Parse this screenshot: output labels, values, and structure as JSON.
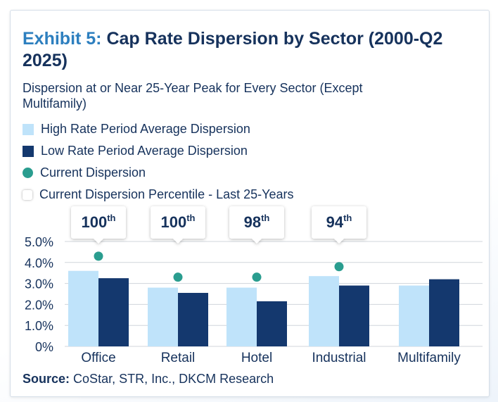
{
  "title": {
    "exhibit": "Exhibit 5:",
    "text": "Cap Rate Dispersion by Sector (2000-Q2 2025)"
  },
  "subtitle": "Dispersion at or Near 25-Year Peak for Every Sector (Except Multifamily)",
  "legend": [
    {
      "label": "High Rate Period Average Dispersion",
      "kind": "light"
    },
    {
      "label": "Low Rate Period Average Dispersion",
      "kind": "dark"
    },
    {
      "label": "Current Dispersion",
      "kind": "dot"
    },
    {
      "label": "Current Dispersion Percentile - Last 25-Years",
      "kind": "badge"
    }
  ],
  "colors": {
    "high_rate": "#bfe3fa",
    "low_rate": "#14386e",
    "current": "#2a9d8f",
    "text": "#16325c",
    "grid": "#d0d5db"
  },
  "chart_data": {
    "type": "bar",
    "title": "Cap Rate Dispersion by Sector (2000-Q2 2025)",
    "categories": [
      "Office",
      "Retail",
      "Hotel",
      "Industrial",
      "Multifamily"
    ],
    "series": [
      {
        "name": "High Rate Period Average Dispersion",
        "values": [
          3.6,
          2.8,
          2.8,
          3.35,
          2.9
        ]
      },
      {
        "name": "Low Rate Period Average Dispersion",
        "values": [
          3.25,
          2.55,
          2.15,
          2.9,
          3.2
        ]
      },
      {
        "name": "Current Dispersion",
        "values": [
          4.3,
          3.3,
          3.3,
          3.8,
          null
        ]
      }
    ],
    "percentiles": [
      {
        "value": "100",
        "suffix": "th"
      },
      {
        "value": "100",
        "suffix": "th"
      },
      {
        "value": "98",
        "suffix": "th"
      },
      {
        "value": "94",
        "suffix": "th"
      },
      null
    ],
    "y_ticks": [
      "5.0%",
      "4.0%",
      "3.0%",
      "2.0%",
      "1.0%",
      "0%"
    ],
    "y_tick_values": [
      5,
      4,
      3,
      2,
      1,
      0
    ],
    "ylim": [
      0,
      5
    ],
    "xlabel": "",
    "ylabel": "",
    "grid": true
  },
  "source": {
    "label": "Source:",
    "text": "CoStar, STR, Inc., DKCM Research"
  }
}
